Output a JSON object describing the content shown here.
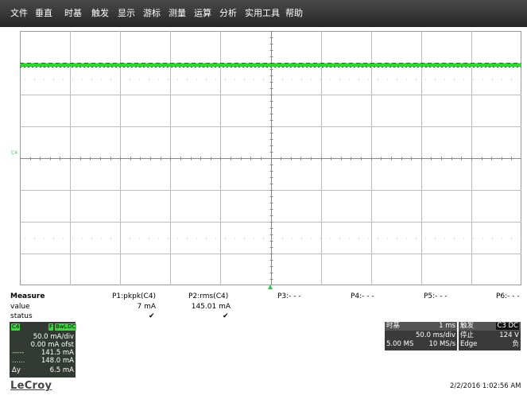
{
  "menu": [
    "文件",
    "垂直",
    "时基",
    "触发",
    "显示",
    "游标",
    "测量",
    "运算",
    "分析",
    "实用工具",
    "帮助"
  ],
  "colors": {
    "trace": "#22dd22",
    "grid": "#bdbdbd",
    "menubar": "#333333",
    "channel_badge": "#3ad83a"
  },
  "screen": {
    "channel_marker": "C4"
  },
  "measure": {
    "header": "Measure",
    "row_labels": [
      "value",
      "status"
    ],
    "params": [
      {
        "label": "P1:pkpk(C4)",
        "value": "7 mA",
        "status": "✔"
      },
      {
        "label": "P2:rms(C4)",
        "value": "145.01 mA",
        "status": "✔"
      },
      {
        "label": "P3:- - -",
        "value": "",
        "status": ""
      },
      {
        "label": "P4:- - -",
        "value": "",
        "status": ""
      },
      {
        "label": "P5:- - -",
        "value": "",
        "status": ""
      },
      {
        "label": "P6:- - -",
        "value": "",
        "status": ""
      }
    ]
  },
  "channel": {
    "name": "C4",
    "badges": [
      "F",
      "BwL",
      "DC"
    ],
    "scale": "50.0 mA/div",
    "offset": "0.00 mA ofst",
    "cursor1": "141.5 mA",
    "cursor2": "148.0 mA",
    "delta_label": "Δy",
    "delta": "6.5 mA"
  },
  "timebase": {
    "title": "时基",
    "delay": "1 ms",
    "per_div": "50.0 ms/div",
    "samples": "5.00 MS",
    "rate": "10 MS/s"
  },
  "trigger": {
    "title": "触发",
    "badge": "C3 DC",
    "mode": "停止",
    "level": "124 V",
    "type": "Edge",
    "slope": "负"
  },
  "brand": "LeCroy",
  "timestamp": "2/2/2016 1:02:56 AM"
}
